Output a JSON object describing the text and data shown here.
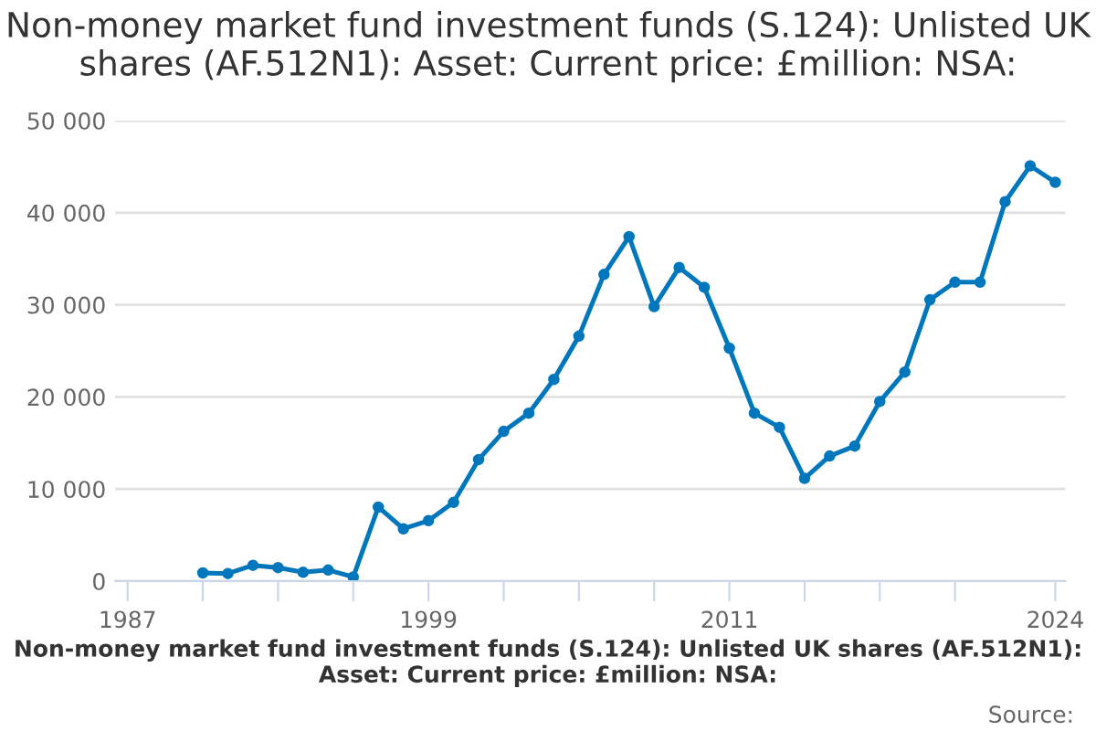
{
  "chart_data": {
    "type": "line",
    "title": "Non-money market fund investment funds (S.124): Unlisted UK shares (AF.512N1): Asset: Current price: £million: NSA:",
    "x": [
      1990,
      1991,
      1992,
      1993,
      1994,
      1995,
      1996,
      1997,
      1998,
      1999,
      2000,
      2001,
      2002,
      2003,
      2004,
      2005,
      2006,
      2007,
      2008,
      2009,
      2010,
      2011,
      2012,
      2013,
      2014,
      2015,
      2016,
      2017,
      2018,
      2019,
      2020,
      2021,
      2022,
      2023,
      2024
    ],
    "series": [
      {
        "color": "#0077bd",
        "values": [
          890,
          830,
          1720,
          1470,
          960,
          1210,
          450,
          8040,
          5680,
          6570,
          8550,
          13200,
          16260,
          18240,
          21900,
          26600,
          33300,
          37400,
          29800,
          34060,
          31900,
          25300,
          18240,
          16700,
          11160,
          13580,
          14670,
          19500,
          22700,
          30550,
          32460,
          32460,
          41200,
          45090,
          43300
        ]
      }
    ],
    "xlim": [
      1986.5,
      2024.4
    ],
    "xticks": [
      1987,
      {
        "value": 1990,
        "label": null
      },
      {
        "value": 1993,
        "label": null
      },
      {
        "value": 1996,
        "label": null
      },
      1999,
      {
        "value": 2002,
        "label": null
      },
      {
        "value": 2005,
        "label": null
      },
      {
        "value": 2008,
        "label": null
      },
      2011,
      {
        "value": 2014,
        "label": null
      },
      {
        "value": 2017,
        "label": null
      },
      {
        "value": 2020,
        "label": null
      },
      2024
    ],
    "ylim": [
      0,
      50000
    ],
    "yticks": [
      0,
      {
        "value": 10000,
        "label": "10 000"
      },
      {
        "value": 20000,
        "label": "20 000"
      },
      {
        "value": 30000,
        "label": "30 000"
      },
      {
        "value": 40000,
        "label": "40 000"
      },
      {
        "value": 50000,
        "label": "50 000"
      }
    ],
    "grid": "y",
    "marker": "circle",
    "line_style": "solid",
    "annotations": [
      "Non-money market fund investment funds (S.124): Unlisted UK shares (AF.512N1): Asset: Current price: £million: NSA:",
      "Source:"
    ]
  }
}
